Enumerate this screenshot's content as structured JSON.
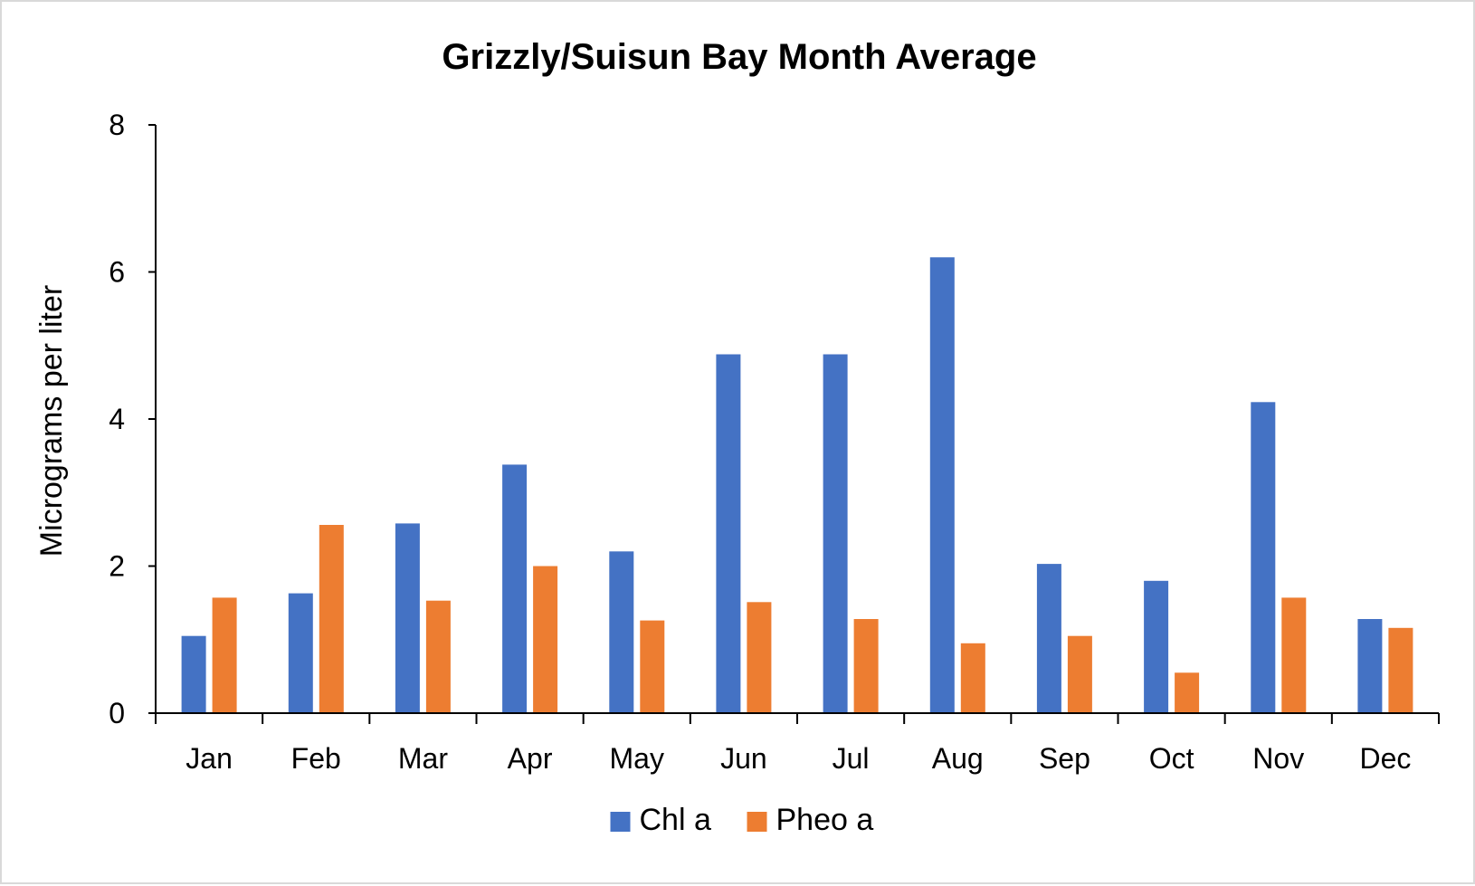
{
  "chart_data": {
    "type": "bar",
    "title": "Grizzly/Suisun Bay Month Average",
    "xlabel": "",
    "ylabel": "Micrograms per liter",
    "ylim": [
      0,
      8
    ],
    "yticks": [
      "0",
      "2",
      "4",
      "6",
      "8"
    ],
    "categories": [
      "Jan",
      "Feb",
      "Mar",
      "Apr",
      "May",
      "Jun",
      "Jul",
      "Aug",
      "Sep",
      "Oct",
      "Nov",
      "Dec"
    ],
    "series": [
      {
        "name": "Chl a",
        "color": "#4472C4",
        "values": [
          1.05,
          1.63,
          2.58,
          3.38,
          2.2,
          4.88,
          4.88,
          6.2,
          2.03,
          1.8,
          4.23,
          1.28
        ]
      },
      {
        "name": "Pheo a",
        "color": "#ED7D31",
        "values": [
          1.57,
          2.56,
          1.53,
          2.0,
          1.26,
          1.51,
          1.28,
          0.95,
          1.05,
          0.55,
          1.57,
          1.16
        ]
      }
    ],
    "grid": false,
    "legend_position": "bottom"
  }
}
